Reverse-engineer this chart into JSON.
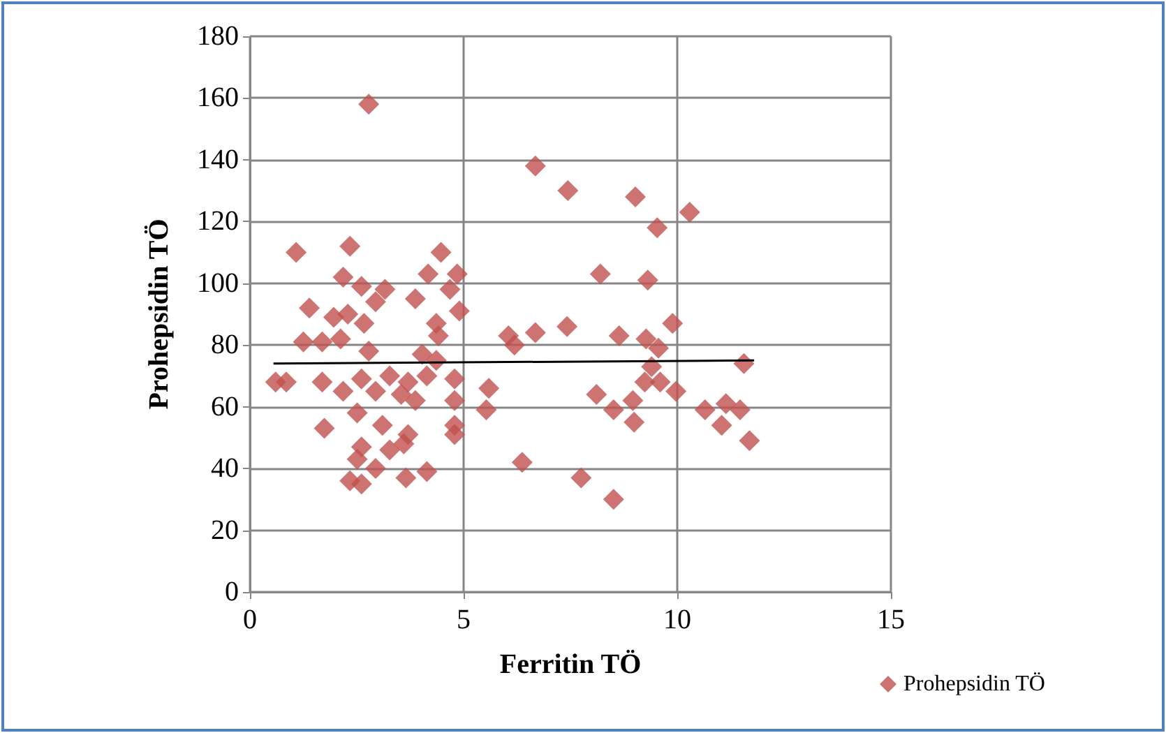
{
  "chart_data": {
    "type": "scatter",
    "xlabel": "Ferritin TÖ",
    "ylabel": "Prohepsidin TÖ",
    "xlim": [
      0,
      15
    ],
    "xticks": [
      0,
      5,
      10,
      15
    ],
    "ylim": [
      0,
      180
    ],
    "yticks": [
      0,
      20,
      40,
      60,
      80,
      100,
      120,
      140,
      160,
      180
    ],
    "grid": true,
    "legend": "bottom right",
    "marker": "diamond",
    "series": [
      {
        "name": "Prohepsidin TÖ",
        "color": "#c0504d",
        "x": [
          6.68,
          7.44,
          9.02,
          9.53,
          10.29,
          8.2,
          9.31,
          6.05,
          6.19,
          6.68,
          7.42,
          8.64,
          9.27,
          9.56,
          9.89,
          9.4,
          9.24,
          9.6,
          9.97,
          11.56,
          5.59,
          5.53,
          8.11,
          8.51,
          8.96,
          8.99,
          10.65,
          11.14,
          11.04,
          11.47,
          11.69,
          6.37,
          7.75,
          8.51,
          2.78,
          1.08,
          2.34,
          4.47,
          4.17,
          4.85,
          2.18,
          2.61,
          3.16,
          2.94,
          3.87,
          4.68,
          4.9,
          1.39,
          1.96,
          2.29,
          2.67,
          4.36,
          4.41,
          1.25,
          1.69,
          2.12,
          2.78,
          4.03,
          0.6,
          0.85,
          1.69,
          2.18,
          2.61,
          3.27,
          2.94,
          3.7,
          4.14,
          4.79,
          2.51,
          3.54,
          3.87,
          4.79,
          1.74,
          3.1,
          3.7,
          4.79,
          4.79,
          2.61,
          3.27,
          3.6,
          2.51,
          2.94,
          2.34,
          2.61,
          3.65,
          4.14,
          4.36
        ],
        "values": [
          138,
          130,
          128,
          118,
          123,
          103,
          101,
          83,
          80,
          84,
          86,
          83,
          82,
          79,
          87,
          73,
          68,
          68,
          65,
          74,
          66,
          59,
          64,
          59,
          62,
          55,
          59,
          61,
          54,
          59,
          49,
          42,
          37,
          30,
          158,
          110,
          112,
          110,
          103,
          103,
          102,
          99,
          98,
          94,
          95,
          98,
          91,
          92,
          89,
          90,
          87,
          87,
          83,
          81,
          81,
          82,
          78,
          77,
          68,
          68,
          68,
          65,
          69,
          70,
          65,
          68,
          70,
          69,
          58,
          64,
          62,
          62,
          53,
          54,
          51,
          54,
          51,
          47,
          46,
          48,
          43,
          40,
          36,
          35,
          37,
          39,
          75
        ]
      },
      {
        "type": "line",
        "color": "#000000",
        "marker": "none",
        "x": [
          0.55,
          11.8
        ],
        "values": [
          74,
          75
        ]
      }
    ]
  }
}
